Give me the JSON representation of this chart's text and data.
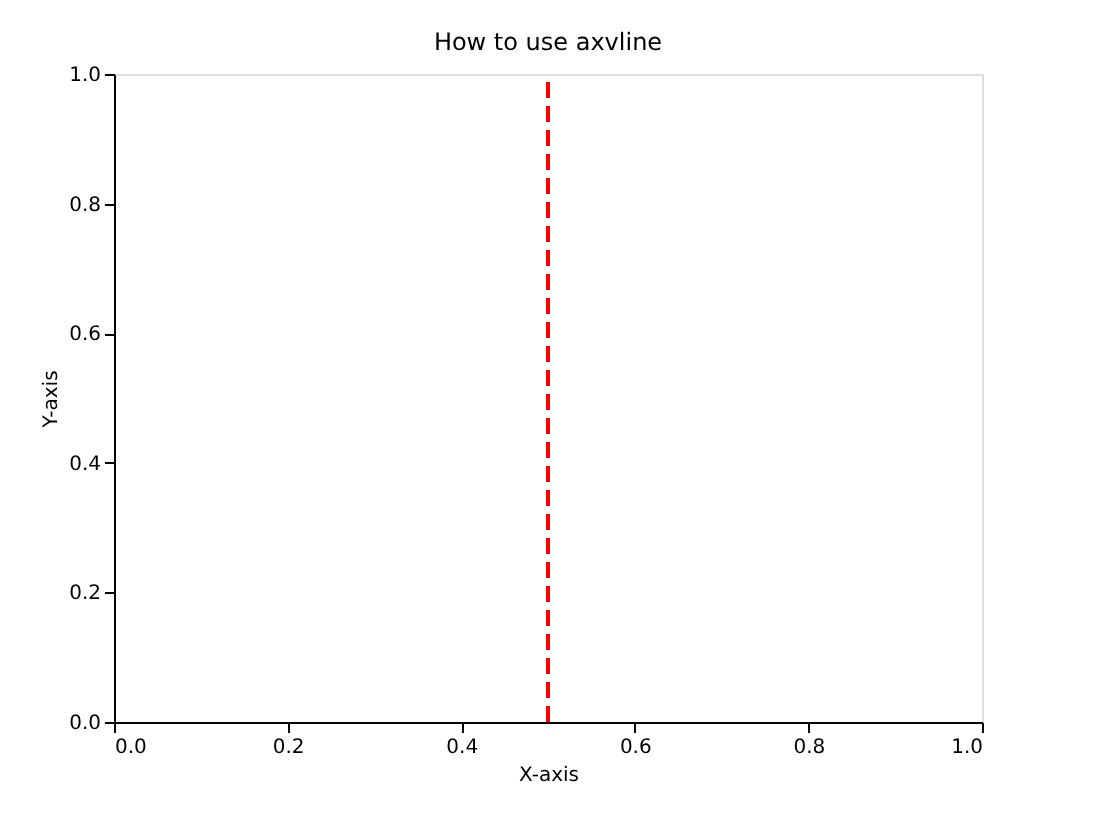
{
  "chart_data": {
    "type": "line",
    "title": "How to use axvline",
    "xlabel": "X-axis",
    "ylabel": "Y-axis",
    "xlim": [
      0,
      1
    ],
    "ylim": [
      0,
      1
    ],
    "xticks": [
      {
        "value": 0,
        "label": "0.0"
      },
      0.2,
      0.4,
      0.6,
      0.8,
      {
        "value": 1,
        "label": "1.0"
      }
    ],
    "yticks": [
      {
        "value": 0,
        "label": "0.0"
      },
      0.2,
      0.4,
      0.6,
      0.8,
      {
        "value": 1,
        "label": "1.0"
      }
    ],
    "ref_lines": [
      {
        "axis": "x",
        "value": 0.5,
        "color": "#ff0000",
        "line_style": "dashed"
      }
    ],
    "grid": false
  }
}
